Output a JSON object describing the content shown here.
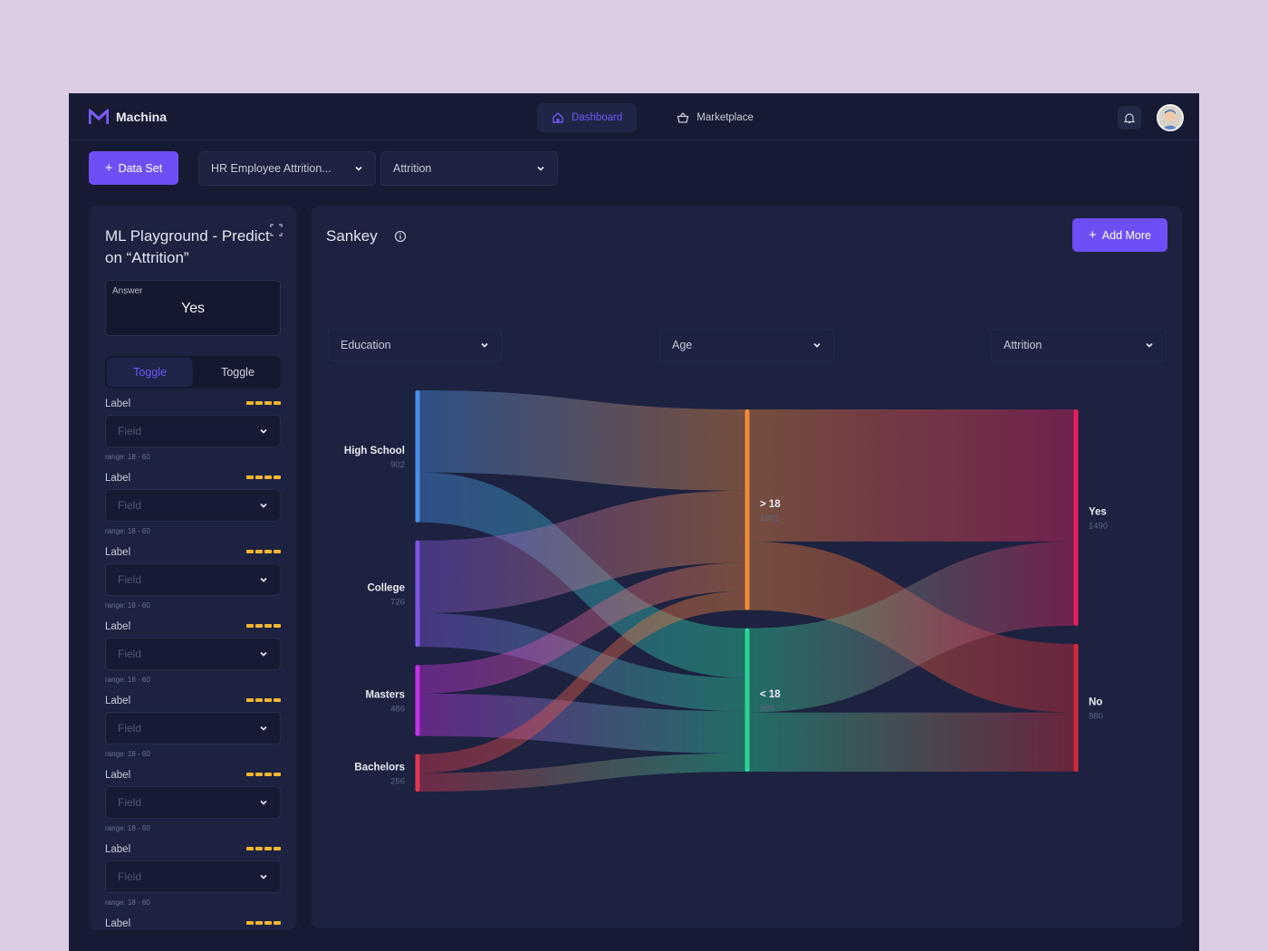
{
  "header": {
    "brand": "Machina",
    "nav": [
      {
        "label": "Dashboard",
        "icon": "home-icon",
        "active": true
      },
      {
        "label": "Marketplace",
        "icon": "basket-icon",
        "active": false
      }
    ],
    "icons": [
      "bell-icon",
      "avatar"
    ]
  },
  "toolbar": {
    "add_dataset": "Data Set",
    "dataset_select": "HR Employee Attrition...",
    "target_select": "Attrition"
  },
  "left_panel": {
    "title": "ML Playground - Predict on “Attrition”",
    "answer_label": "Answer",
    "answer_value": "Yes",
    "toggles": [
      {
        "label": "Toggle",
        "active": true
      },
      {
        "label": "Toggle",
        "active": false
      }
    ],
    "fields": [
      {
        "label": "Label",
        "placeholder": "Field",
        "range": "range: 18 - 60"
      },
      {
        "label": "Label",
        "placeholder": "Field",
        "range": "range: 18 - 60"
      },
      {
        "label": "Label",
        "placeholder": "Field",
        "range": "range: 18 - 60"
      },
      {
        "label": "Label",
        "placeholder": "Field",
        "range": "range: 18 - 60"
      },
      {
        "label": "Label",
        "placeholder": "Field",
        "range": "range: 18 - 60"
      },
      {
        "label": "Label",
        "placeholder": "Field",
        "range": "range: 18 - 60"
      },
      {
        "label": "Label",
        "placeholder": "Field",
        "range": "range: 18 - 60"
      },
      {
        "label": "Label",
        "placeholder": "Field",
        "range": "range: 18 - 60"
      }
    ]
  },
  "main_panel": {
    "title": "Sankey",
    "add_more": "Add More",
    "dimension_selects": [
      "Education",
      "Age",
      "Attrition"
    ]
  },
  "colors": {
    "accent": "#6e4ff6",
    "background": "#161b33",
    "panel": "#1c2240",
    "star": "#f1b62f"
  },
  "chart_data": {
    "type": "sankey",
    "columns": [
      {
        "name": "Education",
        "nodes": [
          {
            "label": "High School",
            "value": 902,
            "color": "#4a8fe7"
          },
          {
            "label": "College",
            "value": 726,
            "color": "#7f55e0"
          },
          {
            "label": "Masters",
            "value": 486,
            "color": "#c431e6"
          },
          {
            "label": "Bachelors",
            "value": 256,
            "color": "#e0364f"
          }
        ]
      },
      {
        "name": "Age",
        "nodes": [
          {
            "label": "> 18",
            "value": 1382,
            "color": "#f08a3c"
          },
          {
            "label": "< 18",
            "value": 988,
            "color": "#2bd59a"
          }
        ]
      },
      {
        "name": "Attrition",
        "nodes": [
          {
            "label": "Yes",
            "value": 1490,
            "color": "#e3215f"
          },
          {
            "label": "No",
            "value": 880,
            "color": "#d42a3c"
          }
        ]
      }
    ],
    "links": [
      {
        "source": "High School",
        "target": "> 18",
        "value": 560
      },
      {
        "source": "High School",
        "target": "< 18",
        "value": 342
      },
      {
        "source": "College",
        "target": "> 18",
        "value": 496
      },
      {
        "source": "College",
        "target": "< 18",
        "value": 230
      },
      {
        "source": "Masters",
        "target": "> 18",
        "value": 196
      },
      {
        "source": "Masters",
        "target": "< 18",
        "value": 290
      },
      {
        "source": "Bachelors",
        "target": "> 18",
        "value": 130
      },
      {
        "source": "Bachelors",
        "target": "< 18",
        "value": 126
      },
      {
        "source": "> 18",
        "target": "Yes",
        "value": 910
      },
      {
        "source": "> 18",
        "target": "No",
        "value": 472
      },
      {
        "source": "< 18",
        "target": "Yes",
        "value": 580
      },
      {
        "source": "< 18",
        "target": "No",
        "value": 408
      }
    ]
  }
}
